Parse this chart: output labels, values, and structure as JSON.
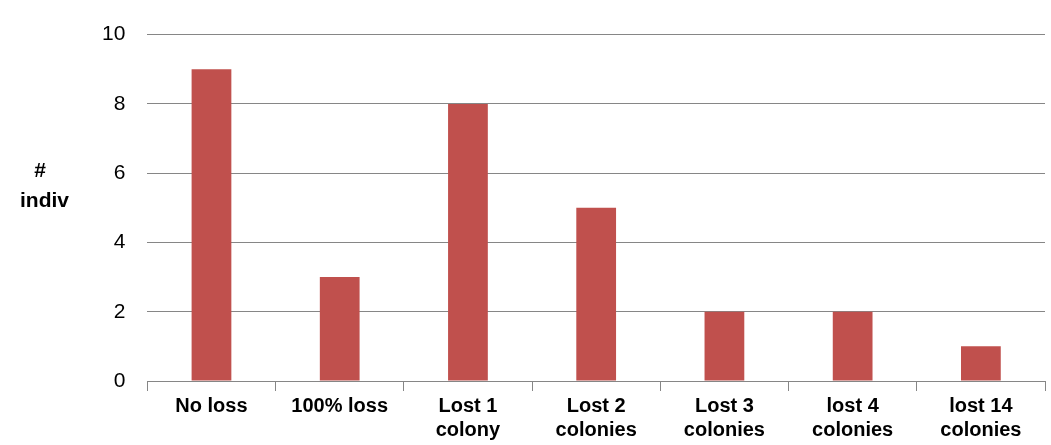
{
  "chart_data": {
    "type": "bar",
    "ylabel": "# indiv",
    "categories": [
      "No loss",
      "100% loss",
      "Lost 1 colony",
      "Lost 2 colonies",
      "Lost 3 colonies",
      "lost 4 colonies",
      "lost 14 colonies"
    ],
    "values": [
      9,
      3,
      8,
      5,
      2,
      2,
      1
    ],
    "color": "#c0504d",
    "ylim": [
      0,
      10
    ],
    "yticks": [
      0,
      2,
      4,
      6,
      8,
      10
    ],
    "grid": "y"
  }
}
